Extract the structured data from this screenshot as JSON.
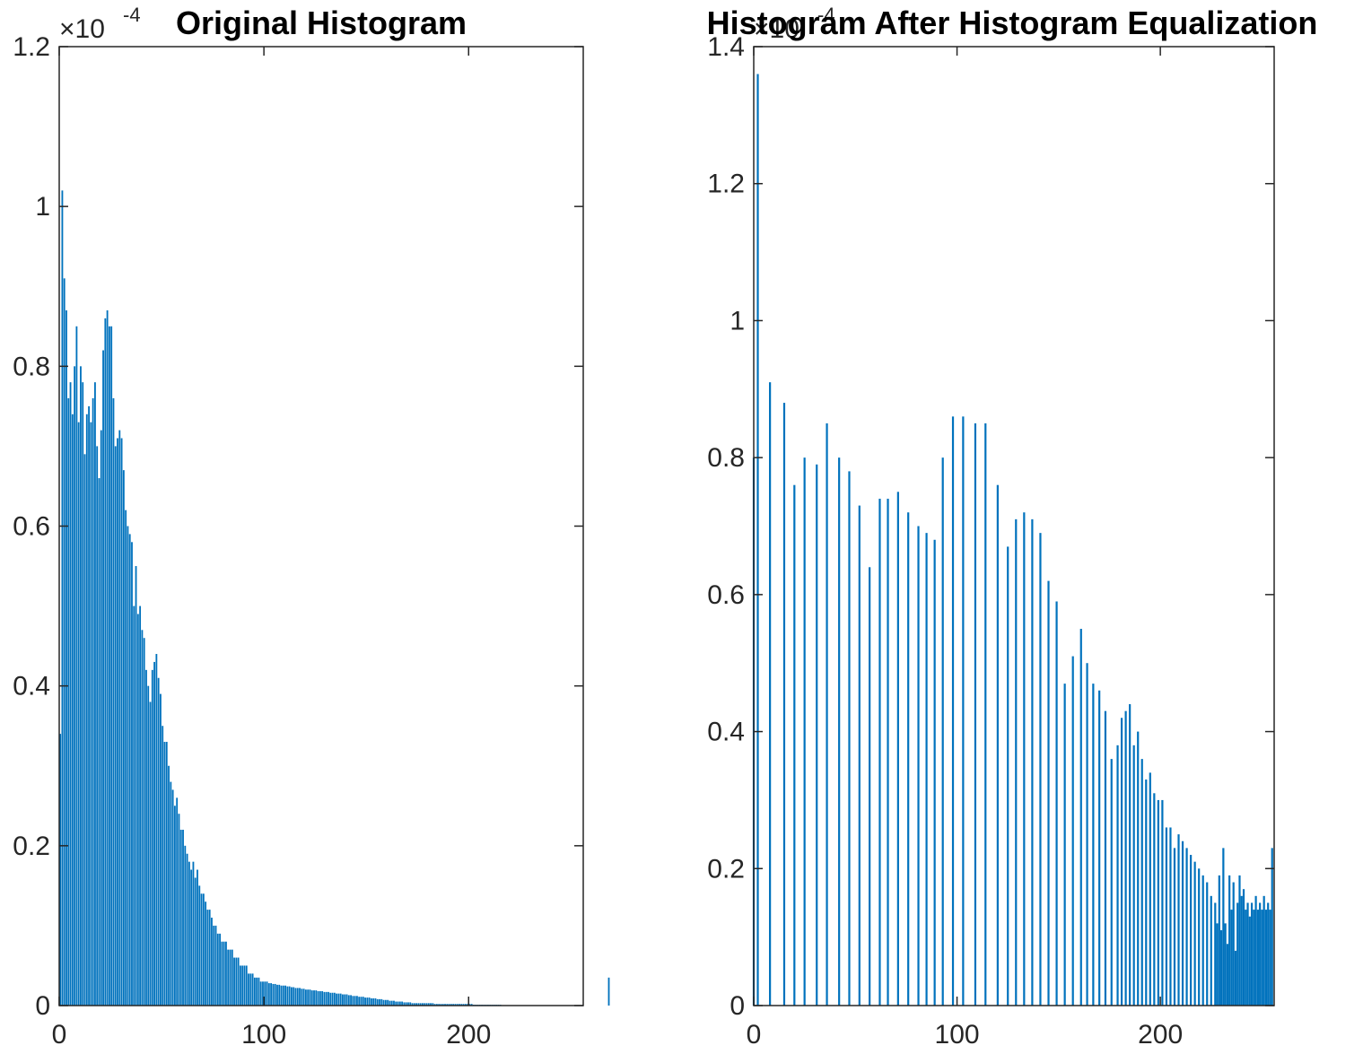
{
  "chart_data": [
    {
      "type": "bar",
      "title": "Original Histogram",
      "exponent_label": "×10",
      "exponent_power": "-4",
      "scale": 0.0001,
      "xlim": [
        0,
        256
      ],
      "ylim": [
        0,
        1.2
      ],
      "xticks": [
        0,
        100,
        200
      ],
      "yticks": [
        0,
        0.2,
        0.4,
        0.6,
        0.8,
        1,
        1.2
      ],
      "xtick_labels": [
        "0",
        "100",
        "200"
      ],
      "ytick_labels": [
        "0",
        "0.2",
        "0.4",
        "0.6",
        "0.8",
        "1",
        "1.2"
      ],
      "bar_color": "#0072BD",
      "x_start": 1,
      "values": [
        0.34,
        1.02,
        0.91,
        0.87,
        0.76,
        0.78,
        0.74,
        0.8,
        0.85,
        0.73,
        0.8,
        0.78,
        0.69,
        0.74,
        0.75,
        0.73,
        0.76,
        0.78,
        0.7,
        0.66,
        0.72,
        0.82,
        0.86,
        0.87,
        0.85,
        0.85,
        0.76,
        0.7,
        0.71,
        0.72,
        0.71,
        0.67,
        0.62,
        0.6,
        0.59,
        0.58,
        0.5,
        0.55,
        0.49,
        0.5,
        0.47,
        0.46,
        0.42,
        0.4,
        0.38,
        0.42,
        0.43,
        0.44,
        0.41,
        0.39,
        0.35,
        0.33,
        0.33,
        0.3,
        0.28,
        0.27,
        0.25,
        0.26,
        0.24,
        0.22,
        0.22,
        0.2,
        0.19,
        0.18,
        0.17,
        0.18,
        0.16,
        0.17,
        0.15,
        0.14,
        0.14,
        0.13,
        0.12,
        0.12,
        0.11,
        0.1,
        0.1,
        0.09,
        0.09,
        0.08,
        0.08,
        0.08,
        0.07,
        0.07,
        0.07,
        0.06,
        0.06,
        0.06,
        0.05,
        0.05,
        0.05,
        0.05,
        0.04,
        0.04,
        0.04,
        0.035,
        0.035,
        0.035,
        0.03,
        0.03,
        0.03,
        0.03,
        0.028,
        0.028,
        0.027,
        0.027,
        0.026,
        0.026,
        0.025,
        0.025,
        0.025,
        0.024,
        0.024,
        0.023,
        0.023,
        0.022,
        0.022,
        0.022,
        0.021,
        0.021,
        0.02,
        0.02,
        0.02,
        0.019,
        0.019,
        0.019,
        0.018,
        0.018,
        0.018,
        0.017,
        0.017,
        0.017,
        0.016,
        0.016,
        0.016,
        0.015,
        0.015,
        0.015,
        0.014,
        0.014,
        0.014,
        0.013,
        0.013,
        0.012,
        0.012,
        0.012,
        0.011,
        0.011,
        0.011,
        0.01,
        0.01,
        0.01,
        0.009,
        0.009,
        0.009,
        0.008,
        0.008,
        0.008,
        0.007,
        0.007,
        0.007,
        0.006,
        0.006,
        0.006,
        0.005,
        0.005,
        0.005,
        0.005,
        0.004,
        0.004,
        0.004,
        0.004,
        0.003,
        0.003,
        0.003,
        0.003,
        0.003,
        0.003,
        0.003,
        0.003,
        0.003,
        0.003,
        0.003,
        0.002,
        0.002,
        0.002,
        0.002,
        0.002,
        0.002,
        0.002,
        0.002,
        0.002,
        0.002,
        0.002,
        0.002,
        0.002,
        0.002,
        0.002,
        0.002,
        0.002,
        0.002,
        0.002,
        0.001,
        0.001,
        0.001,
        0.001,
        0.001,
        0.001,
        0.001,
        0.001,
        0.001,
        0.001,
        0.001,
        0.001,
        0.001,
        0.001,
        0,
        0,
        0,
        0,
        0,
        0,
        0,
        0,
        0,
        0,
        0,
        0,
        0,
        0,
        0,
        0,
        0,
        0,
        0,
        0,
        0,
        0,
        0,
        0,
        0,
        0,
        0,
        0,
        0,
        0,
        0,
        0,
        0,
        0,
        0,
        0,
        0,
        0,
        0,
        0,
        0,
        0,
        0,
        0,
        0,
        0,
        0,
        0,
        0,
        0,
        0,
        0,
        0.035
      ]
    },
    {
      "type": "bar",
      "title": "Histogram After Histogram Equalization",
      "exponent_label": "×10",
      "exponent_power": "-4",
      "scale": 0.0001,
      "xlim": [
        0,
        256
      ],
      "ylim": [
        0,
        1.4
      ],
      "xticks": [
        0,
        100,
        200
      ],
      "yticks": [
        0,
        0.2,
        0.4,
        0.6,
        0.8,
        1,
        1.2,
        1.4
      ],
      "xtick_labels": [
        "0",
        "100",
        "200"
      ],
      "ytick_labels": [
        "0",
        "0.2",
        "0.4",
        "0.6",
        "0.8",
        "1",
        "1.2",
        "1.4"
      ],
      "bar_color": "#0072BD",
      "bars": [
        {
          "x": 0,
          "y": 0.8
        },
        {
          "x": 2,
          "y": 1.36
        },
        {
          "x": 8,
          "y": 0.91
        },
        {
          "x": 15,
          "y": 0.88
        },
        {
          "x": 20,
          "y": 0.76
        },
        {
          "x": 25,
          "y": 0.8
        },
        {
          "x": 31,
          "y": 0.79
        },
        {
          "x": 36,
          "y": 0.85
        },
        {
          "x": 42,
          "y": 0.8
        },
        {
          "x": 47,
          "y": 0.78
        },
        {
          "x": 52,
          "y": 0.73
        },
        {
          "x": 57,
          "y": 0.64
        },
        {
          "x": 62,
          "y": 0.74
        },
        {
          "x": 66,
          "y": 0.74
        },
        {
          "x": 71,
          "y": 0.75
        },
        {
          "x": 76,
          "y": 0.72
        },
        {
          "x": 81,
          "y": 0.7
        },
        {
          "x": 85,
          "y": 0.69
        },
        {
          "x": 89,
          "y": 0.68
        },
        {
          "x": 93,
          "y": 0.8
        },
        {
          "x": 98,
          "y": 0.86
        },
        {
          "x": 103,
          "y": 0.86
        },
        {
          "x": 109,
          "y": 0.85
        },
        {
          "x": 114,
          "y": 0.85
        },
        {
          "x": 120,
          "y": 0.76
        },
        {
          "x": 125,
          "y": 0.67
        },
        {
          "x": 129,
          "y": 0.71
        },
        {
          "x": 133,
          "y": 0.72
        },
        {
          "x": 137,
          "y": 0.71
        },
        {
          "x": 141,
          "y": 0.69
        },
        {
          "x": 145,
          "y": 0.62
        },
        {
          "x": 149,
          "y": 0.59
        },
        {
          "x": 153,
          "y": 0.47
        },
        {
          "x": 157,
          "y": 0.51
        },
        {
          "x": 161,
          "y": 0.55
        },
        {
          "x": 164,
          "y": 0.5
        },
        {
          "x": 167,
          "y": 0.47
        },
        {
          "x": 170,
          "y": 0.46
        },
        {
          "x": 173,
          "y": 0.43
        },
        {
          "x": 176,
          "y": 0.36
        },
        {
          "x": 179,
          "y": 0.38
        },
        {
          "x": 181,
          "y": 0.42
        },
        {
          "x": 183,
          "y": 0.43
        },
        {
          "x": 185,
          "y": 0.44
        },
        {
          "x": 187,
          "y": 0.38
        },
        {
          "x": 189,
          "y": 0.4
        },
        {
          "x": 191,
          "y": 0.36
        },
        {
          "x": 193,
          "y": 0.33
        },
        {
          "x": 195,
          "y": 0.34
        },
        {
          "x": 197,
          "y": 0.31
        },
        {
          "x": 199,
          "y": 0.3
        },
        {
          "x": 201,
          "y": 0.3
        },
        {
          "x": 203,
          "y": 0.26
        },
        {
          "x": 205,
          "y": 0.26
        },
        {
          "x": 207,
          "y": 0.23
        },
        {
          "x": 209,
          "y": 0.25
        },
        {
          "x": 211,
          "y": 0.24
        },
        {
          "x": 213,
          "y": 0.23
        },
        {
          "x": 215,
          "y": 0.22
        },
        {
          "x": 217,
          "y": 0.21
        },
        {
          "x": 219,
          "y": 0.2
        },
        {
          "x": 221,
          "y": 0.19
        },
        {
          "x": 223,
          "y": 0.18
        },
        {
          "x": 225,
          "y": 0.16
        },
        {
          "x": 227,
          "y": 0.15
        },
        {
          "x": 228,
          "y": 0.12
        },
        {
          "x": 229,
          "y": 0.19
        },
        {
          "x": 230,
          "y": 0.11
        },
        {
          "x": 231,
          "y": 0.23
        },
        {
          "x": 232,
          "y": 0.12
        },
        {
          "x": 233,
          "y": 0.09
        },
        {
          "x": 234,
          "y": 0.19
        },
        {
          "x": 235,
          "y": 0.14
        },
        {
          "x": 236,
          "y": 0.18
        },
        {
          "x": 237,
          "y": 0.08
        },
        {
          "x": 238,
          "y": 0.15
        },
        {
          "x": 239,
          "y": 0.19
        },
        {
          "x": 240,
          "y": 0.16
        },
        {
          "x": 241,
          "y": 0.17
        },
        {
          "x": 242,
          "y": 0.14
        },
        {
          "x": 243,
          "y": 0.15
        },
        {
          "x": 244,
          "y": 0.13
        },
        {
          "x": 245,
          "y": 0.15
        },
        {
          "x": 246,
          "y": 0.14
        },
        {
          "x": 247,
          "y": 0.16
        },
        {
          "x": 248,
          "y": 0.14
        },
        {
          "x": 249,
          "y": 0.15
        },
        {
          "x": 250,
          "y": 0.14
        },
        {
          "x": 251,
          "y": 0.16
        },
        {
          "x": 252,
          "y": 0.14
        },
        {
          "x": 253,
          "y": 0.15
        },
        {
          "x": 254,
          "y": 0.14
        },
        {
          "x": 255,
          "y": 0.23
        }
      ]
    }
  ]
}
